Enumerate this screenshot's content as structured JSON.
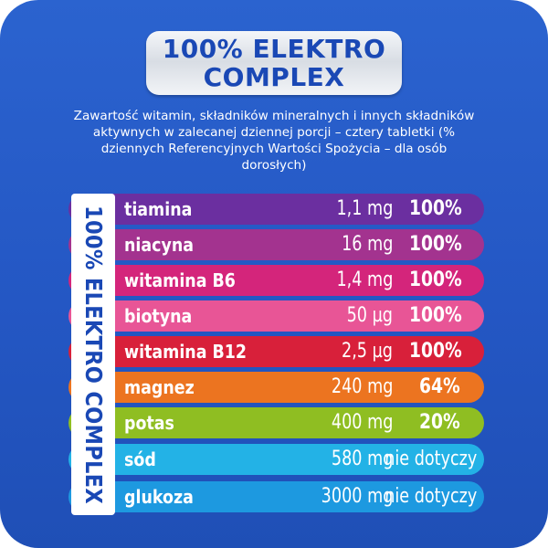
{
  "title": {
    "line1": "100% ELEKTRO",
    "line2": "COMPLEX"
  },
  "intro": {
    "line1": "Zawartość witamin, składników mineralnych i innych składników",
    "line2": "aktywnych w zalecanej dziennej porcji – cztery tabletki (%",
    "line3": "dziennych Referencyjnych Wartości Spożycia – dla osób",
    "line4": "dorosłych)"
  },
  "side_label": "100% ELEKTRO COMPLEX",
  "colors": {
    "background": "#2457c4",
    "title_text": "#1a48b5",
    "tiamina": "#6b2fa0",
    "niacyna": "#a3338f",
    "witamina_b6": "#d4257b",
    "biotyna": "#e85596",
    "witamina_b12": "#d8203a",
    "magnez": "#ec7420",
    "potas": "#8fbe22",
    "sod": "#23b2e6",
    "glukoza": "#1d99e0"
  },
  "rows": [
    {
      "name": "tiamina",
      "amount": "1,1 mg",
      "percent": "100%",
      "color": "#6b2fa0"
    },
    {
      "name": "niacyna",
      "amount": "16 mg",
      "percent": "100%",
      "color": "#a3338f"
    },
    {
      "name": "witamina B6",
      "amount": "1,4 mg",
      "percent": "100%",
      "color": "#d4257b"
    },
    {
      "name": "biotyna",
      "amount": "50 µg",
      "percent": "100%",
      "color": "#e85596"
    },
    {
      "name": "witamina B12",
      "amount": "2,5 µg",
      "percent": "100%",
      "color": "#d8203a"
    },
    {
      "name": "magnez",
      "amount": "240 mg",
      "percent": "64%",
      "color": "#ec7420"
    },
    {
      "name": "potas",
      "amount": "400 mg",
      "percent": "20%",
      "color": "#8fbe22"
    },
    {
      "name": "sód",
      "amount": "580 mg",
      "percent": "nie dotyczy",
      "color": "#23b2e6"
    },
    {
      "name": "glukoza",
      "amount": "3000 mg",
      "percent": "nie dotyczy",
      "color": "#1d99e0"
    }
  ]
}
